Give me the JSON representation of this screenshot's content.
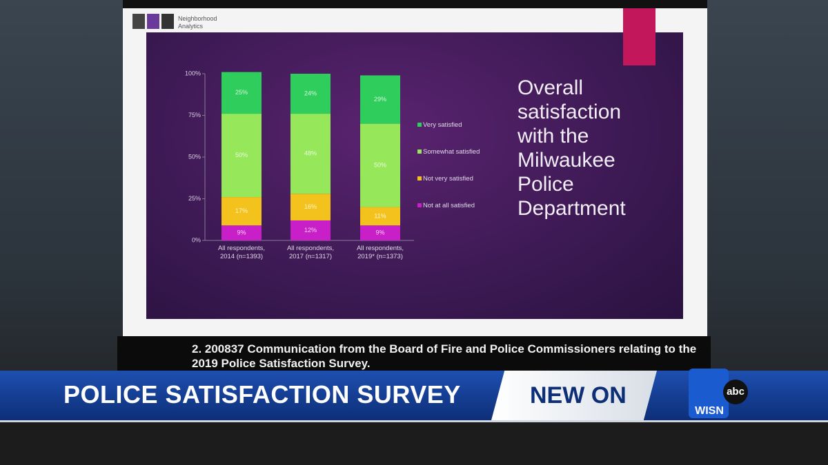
{
  "chart_data": {
    "type": "stacked_bar",
    "title": "Overall satisfaction with the Milwaukee Police Department",
    "categories": [
      "All respondents, 2014 (n=1393)",
      "All respondents, 2017 (n=1317)",
      "All respondents, 2019* (n=1373)"
    ],
    "series": [
      {
        "name": "Not at all satisfied",
        "color": "#c81fc8",
        "values": [
          9,
          12,
          9
        ],
        "value_labels": [
          "9%",
          "12%",
          "9%"
        ]
      },
      {
        "name": "Not very satisfied",
        "color": "#f4c21c",
        "values": [
          17,
          16,
          11
        ],
        "value_labels": [
          "17%",
          "16%",
          "11%"
        ]
      },
      {
        "name": "Somewhat satisfied",
        "color": "#96e85a",
        "values": [
          50,
          48,
          50
        ],
        "value_labels": [
          "50%",
          "48%",
          "50%"
        ]
      },
      {
        "name": "Very satisfied",
        "color": "#2fce5c",
        "values": [
          25,
          24,
          29
        ],
        "value_labels": [
          "25%",
          "24%",
          "29%"
        ]
      }
    ],
    "ylim": [
      0,
      100
    ],
    "yticks": [
      {
        "value": 0,
        "label": "0%"
      },
      {
        "value": 25,
        "label": "25%"
      },
      {
        "value": 50,
        "label": "50%"
      },
      {
        "value": 75,
        "label": "75%"
      },
      {
        "value": 100,
        "label": "100%"
      }
    ],
    "legend": "right"
  },
  "logo": "Neighborhood Analytics",
  "caption": "2. 200837 Communication from the Board of Fire and Police Commissioners relating to the 2019 Police Satisfaction Survey.",
  "banner": {
    "headline": "POLICE SATISFACTION SURVEY",
    "tag": "NEW ON",
    "station": "WISN",
    "network": "abc"
  }
}
